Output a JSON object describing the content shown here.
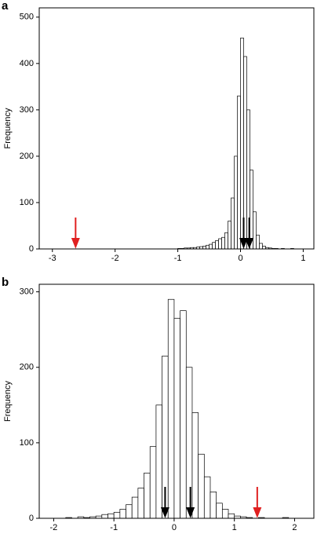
{
  "chart_data": [
    {
      "type": "histogram",
      "panel_label": "a",
      "ylabel": "Frequency",
      "bins": [
        -1.0,
        -0.95,
        -0.9,
        -0.85,
        -0.8,
        -0.75,
        -0.7,
        -0.65,
        -0.6,
        -0.55,
        -0.5,
        -0.45,
        -0.4,
        -0.35,
        -0.3,
        -0.25,
        -0.2,
        -0.15,
        -0.1,
        -0.05,
        0.0,
        0.05,
        0.1,
        0.15,
        0.2,
        0.25,
        0.3,
        0.35,
        0.4,
        0.45,
        0.5,
        0.55,
        0.6,
        0.65,
        0.7,
        0.75,
        0.8,
        0.85,
        0.9,
        0.95,
        1.0
      ],
      "counts": [
        1,
        1,
        2,
        2,
        3,
        3,
        4,
        5,
        6,
        8,
        10,
        14,
        18,
        22,
        25,
        35,
        60,
        110,
        200,
        330,
        455,
        415,
        300,
        170,
        80,
        30,
        12,
        6,
        3,
        2,
        1,
        1,
        0,
        1,
        0,
        0,
        1,
        0,
        0,
        0
      ],
      "color": "#ffffff",
      "arrows": [
        {
          "x": -2.63,
          "color": "#e02020"
        },
        {
          "x": 0.05,
          "color": "#000000"
        },
        {
          "x": 0.14,
          "color": "#000000"
        }
      ],
      "xlim": [
        -3.21,
        1.17
      ],
      "ylim": [
        0,
        520
      ],
      "xticks": [
        -3,
        -2,
        -1,
        0,
        1
      ],
      "yticks": [
        0,
        100,
        200,
        300,
        400,
        500
      ]
    },
    {
      "type": "histogram",
      "panel_label": "b",
      "ylabel": "Frequency",
      "bins": [
        -2.0,
        -1.9,
        -1.8,
        -1.7,
        -1.6,
        -1.5,
        -1.4,
        -1.3,
        -1.2,
        -1.1,
        -1.0,
        -0.9,
        -0.8,
        -0.7,
        -0.6,
        -0.5,
        -0.4,
        -0.3,
        -0.2,
        -0.1,
        0.0,
        0.1,
        0.2,
        0.3,
        0.4,
        0.5,
        0.6,
        0.7,
        0.8,
        0.9,
        1.0,
        1.1,
        1.2,
        1.3,
        1.4,
        1.5,
        1.6,
        1.7,
        1.8,
        1.9,
        2.0
      ],
      "counts": [
        0,
        0,
        1,
        0,
        2,
        1,
        2,
        3,
        5,
        6,
        8,
        12,
        18,
        28,
        40,
        60,
        95,
        150,
        215,
        290,
        265,
        275,
        200,
        140,
        85,
        55,
        35,
        20,
        12,
        6,
        3,
        2,
        1,
        0,
        1,
        0,
        0,
        0,
        1,
        0
      ],
      "color": "#ffffff",
      "arrows": [
        {
          "x": -0.15,
          "color": "#000000"
        },
        {
          "x": 0.27,
          "color": "#000000"
        },
        {
          "x": 1.38,
          "color": "#e02020"
        }
      ],
      "xlim": [
        -2.24,
        2.32
      ],
      "ylim": [
        0,
        310
      ],
      "xticks": [
        -2,
        -1,
        0,
        1,
        2
      ],
      "yticks": [
        0,
        100,
        200,
        300
      ]
    }
  ]
}
